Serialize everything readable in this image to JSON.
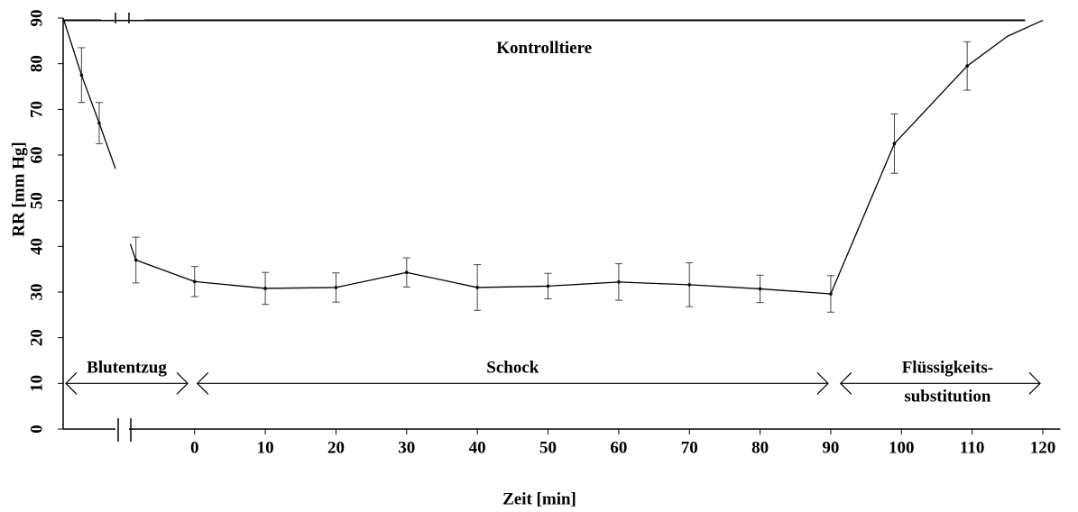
{
  "chart_data": {
    "type": "line",
    "y_label": "RR [mm Hg]",
    "x_label": "Zeit [min]",
    "xlim": [
      -18.6,
      121.2
    ],
    "ylim": [
      0,
      90
    ],
    "xticks": [
      0,
      10,
      20,
      30,
      40,
      50,
      60,
      70,
      80,
      90,
      100,
      110,
      120
    ],
    "yticks": [
      0,
      10,
      20,
      30,
      40,
      50,
      60,
      70,
      80,
      90
    ],
    "color": "#000000",
    "series": [
      {
        "name": "Kontrolltiere",
        "x": [
          -18.6,
          117.5
        ],
        "values": [
          89.5,
          89.5
        ],
        "errors": [
          null,
          null
        ]
      },
      {
        "x": [
          -18.6,
          -16,
          -13.5,
          -11.2
        ],
        "values": [
          90,
          77.5,
          67,
          57
        ],
        "errors": [
          null,
          6,
          4.5,
          null
        ]
      },
      {
        "x": [
          -9.1,
          -8.3,
          0,
          10,
          20,
          30,
          40,
          50,
          60,
          70,
          80,
          90
        ],
        "values": [
          40.5,
          37,
          32.3,
          30.8,
          31,
          34.3,
          31,
          31.3,
          32.2,
          31.6,
          30.7,
          29.6
        ],
        "errors": [
          null,
          5,
          3.3,
          3.5,
          3.2,
          3.2,
          5,
          2.8,
          4,
          4.8,
          3,
          4
        ]
      },
      {
        "x": [
          90,
          99,
          109.3,
          115,
          120
        ],
        "values": [
          29.6,
          62.5,
          79.5,
          86,
          89.5
        ],
        "errors": [
          null,
          6.5,
          5.3,
          null,
          null
        ]
      }
    ],
    "phases": [
      {
        "lines": [
          "Blutentzug"
        ],
        "start": -18.6,
        "end": -0.6,
        "y": 10
      },
      {
        "lines": [
          "Schock"
        ],
        "start": 0,
        "end": 90,
        "y": 10
      },
      {
        "lines": [
          "Flüssigkeits-",
          "substitution"
        ],
        "start": 91,
        "end": 120,
        "y": 10
      }
    ]
  }
}
